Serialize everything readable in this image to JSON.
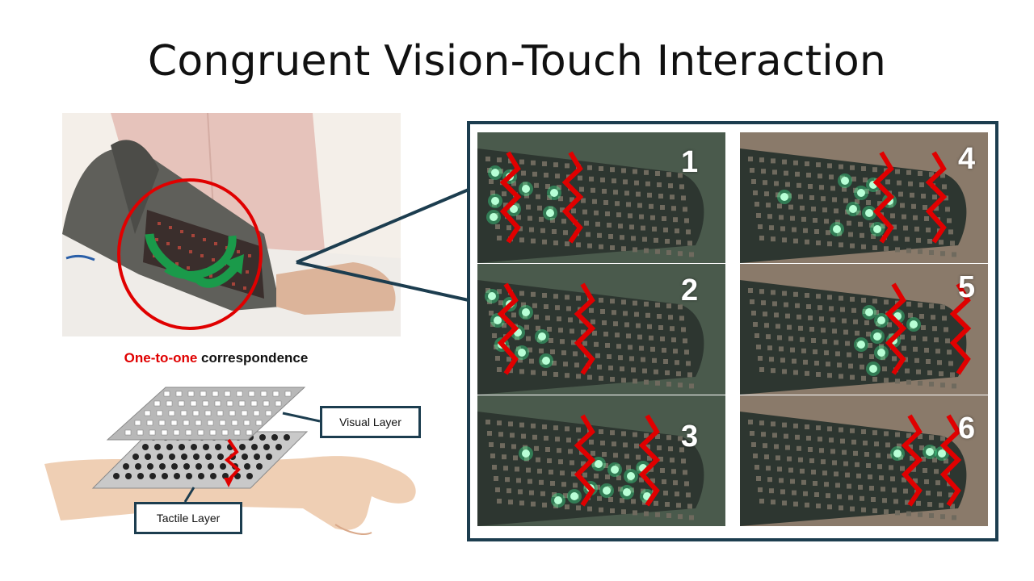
{
  "title": "Congruent Vision-Touch Interaction",
  "correspondence": {
    "highlight": "One-to-one",
    "rest": " correspondence"
  },
  "labels": {
    "visual_layer": "Visual Layer",
    "tactile_layer": "Tactile Layer"
  },
  "frames": [
    {
      "number": "1",
      "led_color": "#3dff9a"
    },
    {
      "number": "2",
      "led_color": "#3dff9a"
    },
    {
      "number": "3",
      "led_color": "#3dff9a"
    },
    {
      "number": "4",
      "led_color": "#3dff9a"
    },
    {
      "number": "5",
      "led_color": "#3dff9a"
    },
    {
      "number": "6",
      "led_color": "#3dff9a"
    }
  ],
  "colors": {
    "frame_border": "#1c3d4f",
    "accent_red": "#e00000",
    "arrow_green": "#1a9a4a"
  }
}
